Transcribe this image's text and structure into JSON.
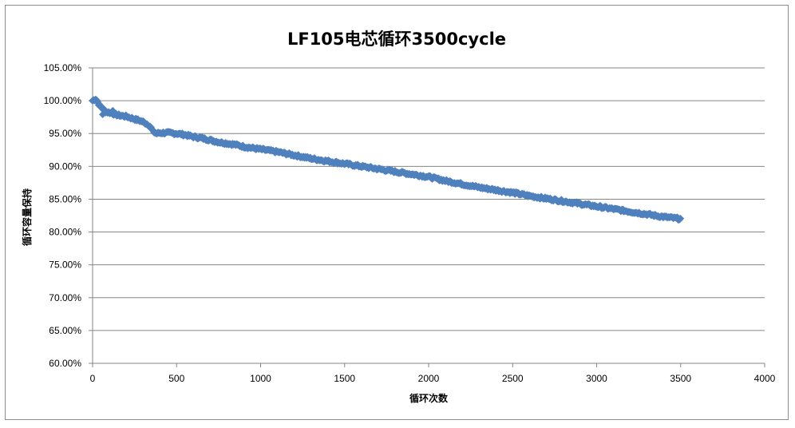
{
  "chart_data": {
    "type": "scatter",
    "title": "LF105电芯循环3500cycle",
    "xlabel": "循环次数",
    "ylabel": "循环容量保持",
    "xlim": [
      0,
      4000
    ],
    "ylim": [
      0.6,
      1.05
    ],
    "x_ticks": [
      "0",
      "500",
      "1000",
      "1500",
      "2000",
      "2500",
      "3000",
      "3500",
      "4000"
    ],
    "y_ticks": [
      "60.00%",
      "65.00%",
      "70.00%",
      "75.00%",
      "80.00%",
      "85.00%",
      "90.00%",
      "95.00%",
      "100.00%",
      "105.00%"
    ],
    "grid": true,
    "legend": "none",
    "marker": "diamond",
    "series": [
      {
        "color": "#4f81bd",
        "x": [
          0,
          20,
          40,
          60,
          80,
          100,
          150,
          200,
          250,
          300,
          340,
          360,
          380,
          400,
          450,
          500,
          550,
          600,
          650,
          700,
          750,
          800,
          850,
          900,
          950,
          1000,
          1100,
          1200,
          1300,
          1400,
          1500,
          1600,
          1700,
          1800,
          1900,
          2000,
          2100,
          2200,
          2300,
          2400,
          2500,
          2600,
          2700,
          2800,
          2900,
          3000,
          3100,
          3200,
          3300,
          3400,
          3500
        ],
        "y": [
          1.0,
          1.003,
          0.993,
          0.988,
          0.983,
          0.982,
          0.978,
          0.976,
          0.972,
          0.968,
          0.962,
          0.953,
          0.95,
          0.951,
          0.951,
          0.95,
          0.948,
          0.945,
          0.943,
          0.94,
          0.937,
          0.935,
          0.933,
          0.93,
          0.928,
          0.926,
          0.922,
          0.917,
          0.912,
          0.908,
          0.904,
          0.9,
          0.896,
          0.892,
          0.888,
          0.884,
          0.878,
          0.873,
          0.868,
          0.864,
          0.86,
          0.855,
          0.851,
          0.847,
          0.843,
          0.839,
          0.835,
          0.831,
          0.827,
          0.823,
          0.82
        ]
      }
    ]
  }
}
